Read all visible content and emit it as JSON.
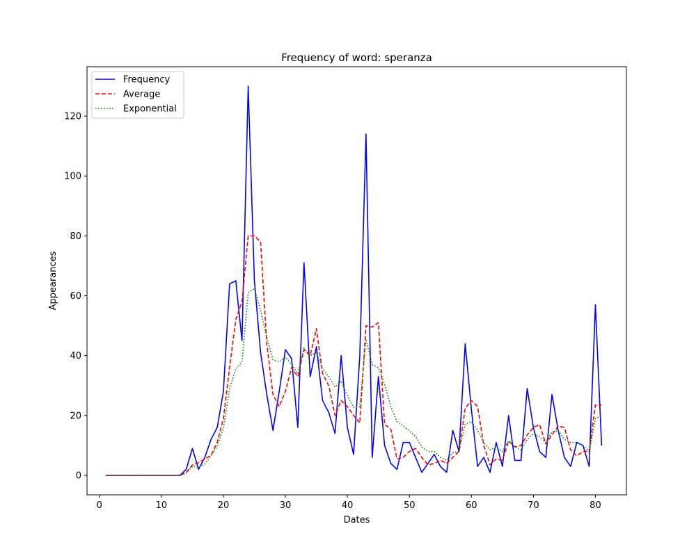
{
  "chart_data": {
    "type": "line",
    "title": "Frequency of word: speranza",
    "xlabel": "Dates",
    "ylabel": "Appearances",
    "xlim": [
      -2,
      85
    ],
    "ylim": [
      -6.5,
      136.5
    ],
    "xticks": [
      0,
      10,
      20,
      30,
      40,
      50,
      60,
      70,
      80
    ],
    "yticks": [
      0,
      20,
      40,
      60,
      80,
      100,
      120
    ],
    "legend_position": "top-left",
    "grid": false,
    "x": [
      1,
      2,
      3,
      4,
      5,
      6,
      7,
      8,
      9,
      10,
      11,
      12,
      13,
      14,
      15,
      16,
      17,
      18,
      19,
      20,
      21,
      22,
      23,
      24,
      25,
      26,
      27,
      28,
      29,
      30,
      31,
      32,
      33,
      34,
      35,
      36,
      37,
      38,
      39,
      40,
      41,
      42,
      43,
      44,
      45,
      46,
      47,
      48,
      49,
      50,
      51,
      52,
      53,
      54,
      55,
      56,
      57,
      58,
      59,
      60,
      61,
      62,
      63,
      64,
      65,
      66,
      67,
      68,
      69,
      70,
      71,
      72,
      73,
      74,
      75,
      76,
      77,
      78,
      79,
      80,
      81
    ],
    "series": [
      {
        "name": "Frequency",
        "color": "#0000ff",
        "style": "solid",
        "values": [
          0,
          0,
          0,
          0,
          0,
          0,
          0,
          0,
          0,
          0,
          0,
          0,
          0,
          2,
          9,
          2,
          6,
          12,
          16,
          28,
          64,
          65,
          45,
          130,
          65,
          41,
          27,
          15,
          28,
          42,
          39,
          16,
          71,
          33,
          43,
          25,
          21,
          14,
          40,
          16,
          7,
          40,
          114,
          6,
          33,
          10,
          4,
          2,
          11,
          11,
          6,
          1,
          4,
          7,
          3,
          1,
          15,
          8,
          44,
          22,
          3,
          6,
          1,
          11,
          3,
          20,
          5,
          5,
          29,
          16,
          8,
          6,
          27,
          15,
          6,
          3,
          11,
          10,
          3,
          57,
          10
        ]
      },
      {
        "name": "Average",
        "color": "#ff0000",
        "style": "dashed",
        "values": [
          0,
          0,
          0,
          0,
          0,
          0,
          0,
          0,
          0,
          0,
          0,
          0,
          0,
          1,
          3.5,
          4.3,
          5.5,
          6.7,
          11,
          19,
          36,
          52,
          58,
          80,
          80,
          78,
          44,
          27,
          23,
          28,
          36,
          33,
          42,
          40,
          49,
          34,
          30,
          20,
          25,
          23,
          20,
          17.5,
          50,
          49.5,
          51,
          17,
          15.5,
          5.5,
          6,
          8,
          9,
          6,
          3.5,
          4,
          5,
          4,
          6,
          8,
          22.5,
          25,
          23,
          10,
          3.5,
          5.5,
          5,
          11.5,
          9.5,
          10,
          13.5,
          16,
          17,
          10.5,
          13.5,
          16.5,
          16,
          8.5,
          6.5,
          8,
          8,
          23.5,
          23.5
        ]
      },
      {
        "name": "Exponential",
        "color": "#008000",
        "style": "dotted",
        "values": [
          0,
          0,
          0,
          0,
          0,
          0,
          0,
          0,
          0,
          0,
          0,
          0,
          0,
          0.7,
          3,
          2.7,
          3.8,
          6.5,
          9.7,
          15.8,
          29,
          35.5,
          38,
          61,
          62.5,
          55,
          46,
          38.5,
          38,
          39.5,
          37,
          34,
          42.5,
          40,
          41,
          35.5,
          33,
          29.5,
          31.5,
          26.5,
          22.7,
          23,
          45.5,
          37,
          36,
          30.5,
          23,
          18,
          16.5,
          14.8,
          13,
          9.5,
          8,
          8,
          6,
          5,
          7.5,
          8,
          17,
          18,
          15,
          11,
          8.5,
          9.5,
          8,
          11.5,
          9.5,
          8.5,
          12,
          14,
          13,
          11,
          14.5,
          15,
          12,
          11,
          11,
          10,
          8,
          19,
          20
        ]
      }
    ]
  }
}
